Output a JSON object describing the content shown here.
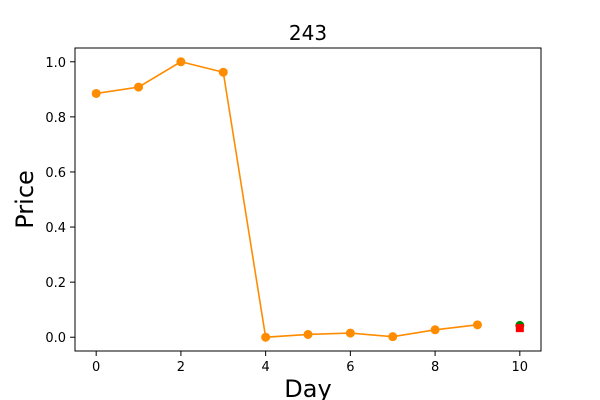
{
  "chart_data": {
    "type": "line",
    "title": "243",
    "xlabel": "Day",
    "ylabel": "Price",
    "xlim": [
      -0.5,
      10.5
    ],
    "ylim": [
      -0.05,
      1.05
    ],
    "x_ticks": [
      0,
      2,
      4,
      6,
      8,
      10
    ],
    "y_ticks": [
      0.0,
      0.2,
      0.4,
      0.6,
      0.8,
      1.0
    ],
    "x_tick_labels": [
      "0",
      "2",
      "4",
      "6",
      "8",
      "10"
    ],
    "y_tick_labels": [
      "0.0",
      "0.2",
      "0.4",
      "0.6",
      "0.8",
      "1.0"
    ],
    "grid": false,
    "series": [
      {
        "color": "#ff8c00",
        "marker": "circle",
        "line": true,
        "x": [
          0,
          1,
          2,
          3,
          4,
          5,
          6,
          7,
          8,
          9
        ],
        "y": [
          0.885,
          0.908,
          1.0,
          0.962,
          0.0,
          0.01,
          0.015,
          0.002,
          0.027,
          0.045
        ]
      },
      {
        "color": "#008000",
        "marker": "circle",
        "line": false,
        "x": [
          10
        ],
        "y": [
          0.043
        ]
      },
      {
        "color": "#ff0000",
        "marker": "square",
        "line": false,
        "x": [
          10
        ],
        "y": [
          0.033
        ]
      }
    ]
  }
}
